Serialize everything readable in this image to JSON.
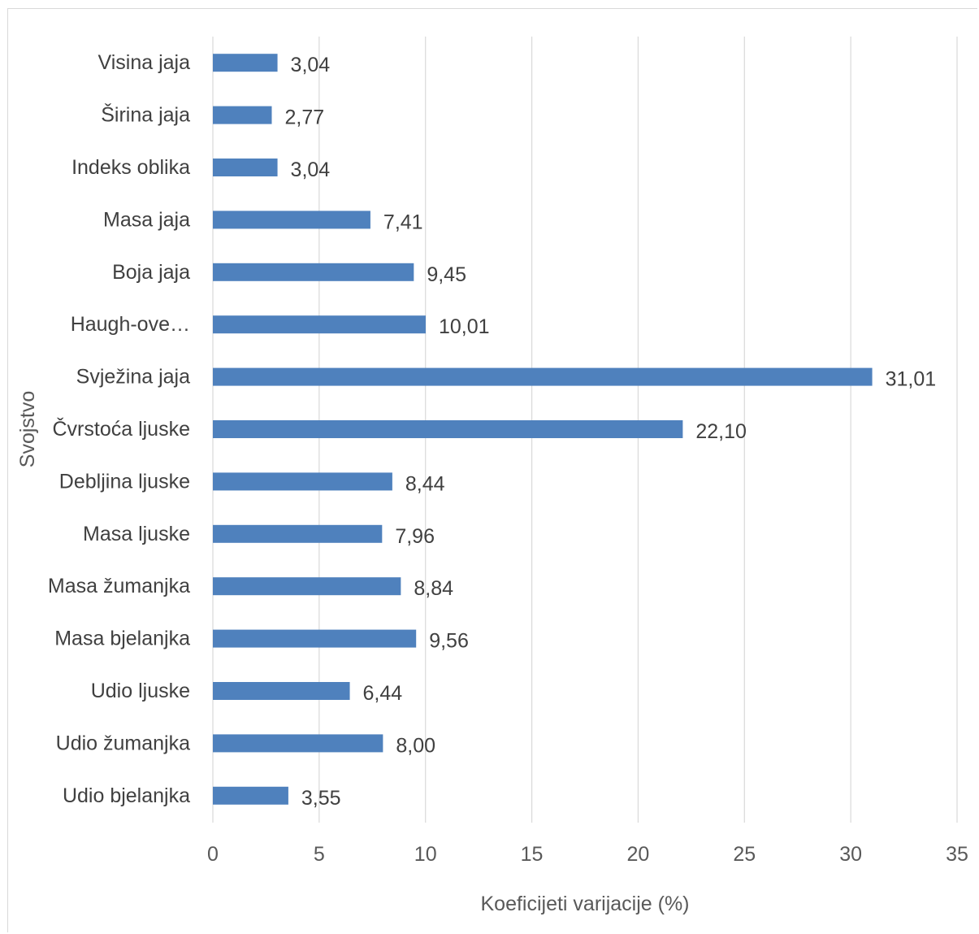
{
  "chart_data": {
    "type": "bar",
    "orientation": "horizontal",
    "title": "",
    "xlabel": "Koeficijeti varijacije (%)",
    "ylabel": "Svojstvo",
    "categories": [
      "Visina jaja",
      "Širina jaja",
      "Indeks oblika",
      "Masa jaja",
      "Boja jaja",
      "Haugh-ove…",
      "Svježina jaja",
      "Čvrstoća ljuske",
      "Debljina ljuske",
      "Masa ljuske",
      "Masa žumanjka",
      "Masa bjelanjka",
      "Udio ljuske",
      "Udio žumanjka",
      "Udio bjelanjka"
    ],
    "values": [
      3.04,
      2.77,
      3.04,
      7.41,
      9.45,
      10.01,
      31.01,
      22.1,
      8.44,
      7.96,
      8.84,
      9.56,
      6.44,
      8.0,
      3.55
    ],
    "value_labels": [
      "3,04",
      "2,77",
      "3,04",
      "7,41",
      "9,45",
      "10,01",
      "31,01",
      "22,10",
      "8,44",
      "7,96",
      "8,84",
      "9,56",
      "6,44",
      "8,00",
      "3,55"
    ],
    "xlim": [
      0,
      35
    ],
    "xticks": [
      "0",
      "5",
      "10",
      "15",
      "20",
      "25",
      "30",
      "35"
    ],
    "grid": "vertical",
    "legend": "none",
    "bar_color": "#4f81bd",
    "grid_color": "#d9d9d9"
  }
}
